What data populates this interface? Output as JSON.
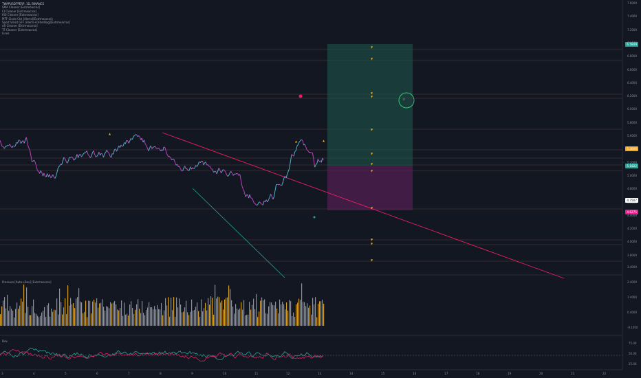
{
  "window": {
    "symbol_title": "TWAPUSDTPERP, 1D, BINANCE"
  },
  "indicators": [
    "SMA Cleaner [Extrmeacros]",
    "CI Cleaner [Extrmeacros]",
    "RSI Cleaner [Extrmeacros]",
    "MTF Clude Ctrl [Alerts][Extrmeacros]",
    "Sport Vinsit GFF [Alerts+OrderBag][Extrmeacros]",
    "nR Cleaner [Extrmeacros]",
    "TF Cleaner [Extrmeacros]",
    "Lines"
  ],
  "volume_pane_label": "Pressure [Auto+Dev] [Extrmeacros]",
  "osc_pane_label": "Dev",
  "price_axis": [
    "7.6000",
    "7.4000",
    "7.2000",
    "7.0000",
    "6.8000",
    "6.6000",
    "6.4000",
    "6.2000",
    "6.0000",
    "5.8000",
    "5.6000",
    "5.4000",
    "5.2000",
    "5.0000",
    "4.8000",
    "4.6000",
    "4.4000",
    "4.2000",
    "4.0000",
    "3.8000"
  ],
  "price_tags": [
    {
      "value": "6.5849",
      "color": "#26a69a",
      "row": 64
    },
    {
      "value": "5.3600",
      "color": "#f5a623",
      "row": 216
    },
    {
      "value": "5.1822",
      "color": "#26a69a",
      "row": 241
    },
    {
      "value": "4.7507",
      "color": "#ffffff",
      "row": 291,
      "text_color": "#131722"
    },
    {
      "value": "4.6275",
      "color": "#e91e8c",
      "row": 308
    }
  ],
  "volume_axis": [
    "3.4000",
    "2.4000",
    "1.4000",
    "0.4000",
    "-0.1000"
  ],
  "osc_axis": [
    "75.00",
    "50.00",
    "25.00"
  ],
  "x_axis": [
    "3",
    "4",
    "5",
    "6",
    "7",
    "8",
    "9",
    "10",
    "11",
    "12",
    "13",
    "14",
    "15",
    "16",
    "17",
    "18",
    "19",
    "20",
    "21",
    "22"
  ],
  "trade_marker_label": "0"
}
